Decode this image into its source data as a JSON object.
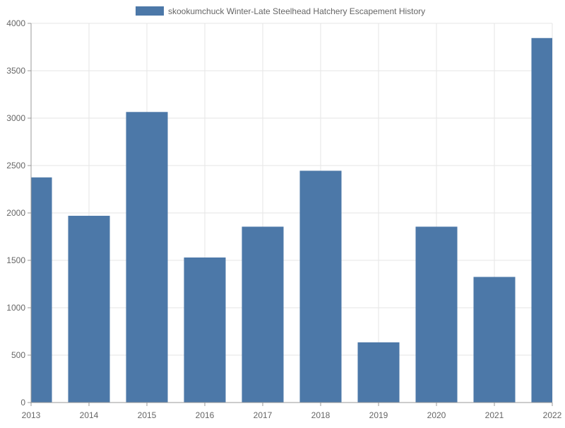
{
  "chart_data": {
    "type": "bar",
    "categories": [
      "2013",
      "2014",
      "2015",
      "2016",
      "2017",
      "2018",
      "2019",
      "2020",
      "2021",
      "2022"
    ],
    "series": [
      {
        "name": "skookumchuck Winter-Late Steelhead Hatchery Escapement History",
        "values": [
          2375,
          1970,
          3065,
          1530,
          1855,
          2445,
          635,
          1855,
          1325,
          3845
        ],
        "color": "#4c78a8"
      }
    ],
    "title": "",
    "xlabel": "",
    "ylabel": "",
    "ylim": [
      0,
      4000
    ],
    "yticks": [
      0,
      500,
      1000,
      1500,
      2000,
      2500,
      3000,
      3500,
      4000
    ],
    "grid": true,
    "legend_position": "top"
  },
  "colors": {
    "bar": "#4c78a8",
    "grid": "#e5e5e5",
    "axis": "#999999",
    "text": "#666666"
  }
}
